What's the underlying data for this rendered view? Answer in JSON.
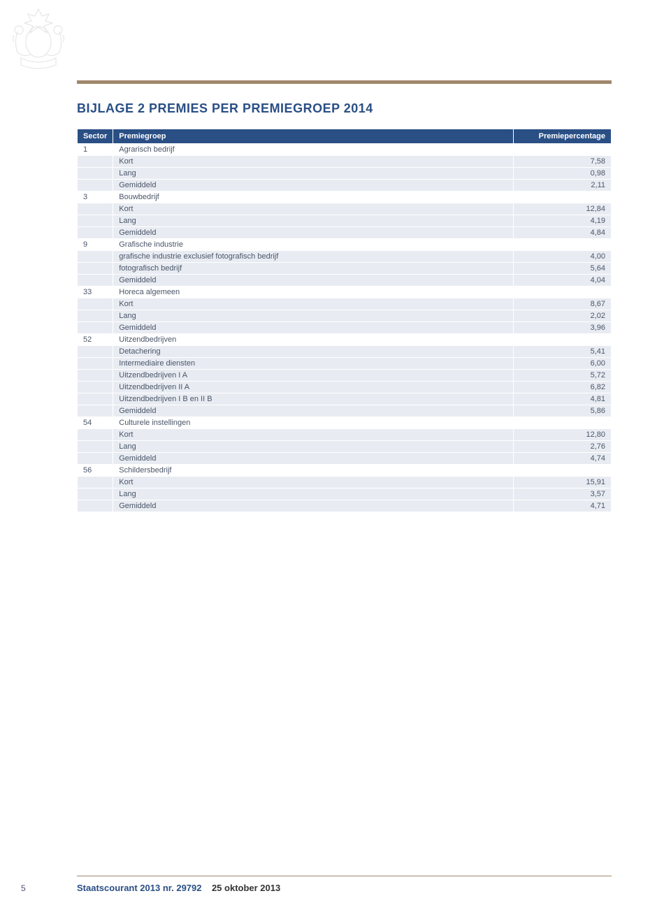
{
  "title": "BIJLAGE 2 PREMIES PER PREMIEGROEP 2014",
  "columns": {
    "sector": "Sector",
    "group": "Premiegroep",
    "pct": "Premiepercentage"
  },
  "rows": [
    {
      "type": "section",
      "sector": "1",
      "group": "Agrarisch bedrijf"
    },
    {
      "type": "data",
      "group": "Kort",
      "pct": "7,58"
    },
    {
      "type": "data",
      "group": "Lang",
      "pct": "0,98"
    },
    {
      "type": "data",
      "group": "Gemiddeld",
      "pct": "2,11"
    },
    {
      "type": "section",
      "sector": "3",
      "group": "Bouwbedrijf"
    },
    {
      "type": "data",
      "group": "Kort",
      "pct": "12,84"
    },
    {
      "type": "data",
      "group": "Lang",
      "pct": "4,19"
    },
    {
      "type": "data",
      "group": "Gemiddeld",
      "pct": "4,84"
    },
    {
      "type": "section",
      "sector": "9",
      "group": "Grafische industrie"
    },
    {
      "type": "data",
      "group": "grafische industrie exclusief fotografisch bedrijf",
      "pct": "4,00"
    },
    {
      "type": "data",
      "group": "fotografisch bedrijf",
      "pct": "5,64"
    },
    {
      "type": "data",
      "group": "Gemiddeld",
      "pct": "4,04"
    },
    {
      "type": "section",
      "sector": "33",
      "group": "Horeca algemeen"
    },
    {
      "type": "data",
      "group": "Kort",
      "pct": "8,67"
    },
    {
      "type": "data",
      "group": "Lang",
      "pct": "2,02"
    },
    {
      "type": "data",
      "group": "Gemiddeld",
      "pct": "3,96"
    },
    {
      "type": "section",
      "sector": "52",
      "group": "Uitzendbedrijven"
    },
    {
      "type": "data",
      "group": "Detachering",
      "pct": "5,41"
    },
    {
      "type": "data",
      "group": "Intermediaire diensten",
      "pct": "6,00"
    },
    {
      "type": "data",
      "group": "Uitzendbedrijven I A",
      "pct": "5,72"
    },
    {
      "type": "data",
      "group": "Uitzendbedrijven II A",
      "pct": "6,82"
    },
    {
      "type": "data",
      "group": "Uitzendbedrijven I B en II B",
      "pct": "4,81"
    },
    {
      "type": "data",
      "group": "Gemiddeld",
      "pct": "5,86"
    },
    {
      "type": "section",
      "sector": "54",
      "group": "Culturele instellingen"
    },
    {
      "type": "data",
      "group": "Kort",
      "pct": "12,80"
    },
    {
      "type": "data",
      "group": "Lang",
      "pct": "2,76"
    },
    {
      "type": "data",
      "group": "Gemiddeld",
      "pct": "4,74"
    },
    {
      "type": "section",
      "sector": "56",
      "group": "Schildersbedrijf"
    },
    {
      "type": "data",
      "group": "Kort",
      "pct": "15,91"
    },
    {
      "type": "data",
      "group": "Lang",
      "pct": "3,57"
    },
    {
      "type": "data",
      "group": "Gemiddeld",
      "pct": "4,71"
    }
  ],
  "footer": {
    "page": "5",
    "publication": "Staatscourant 2013 nr. 29792",
    "date": "25 oktober 2013"
  },
  "colors": {
    "accent_brown": "#a0876c",
    "header_blue": "#2a4f85",
    "row_tint": "#e8ecf2",
    "text": "#4a5568"
  }
}
